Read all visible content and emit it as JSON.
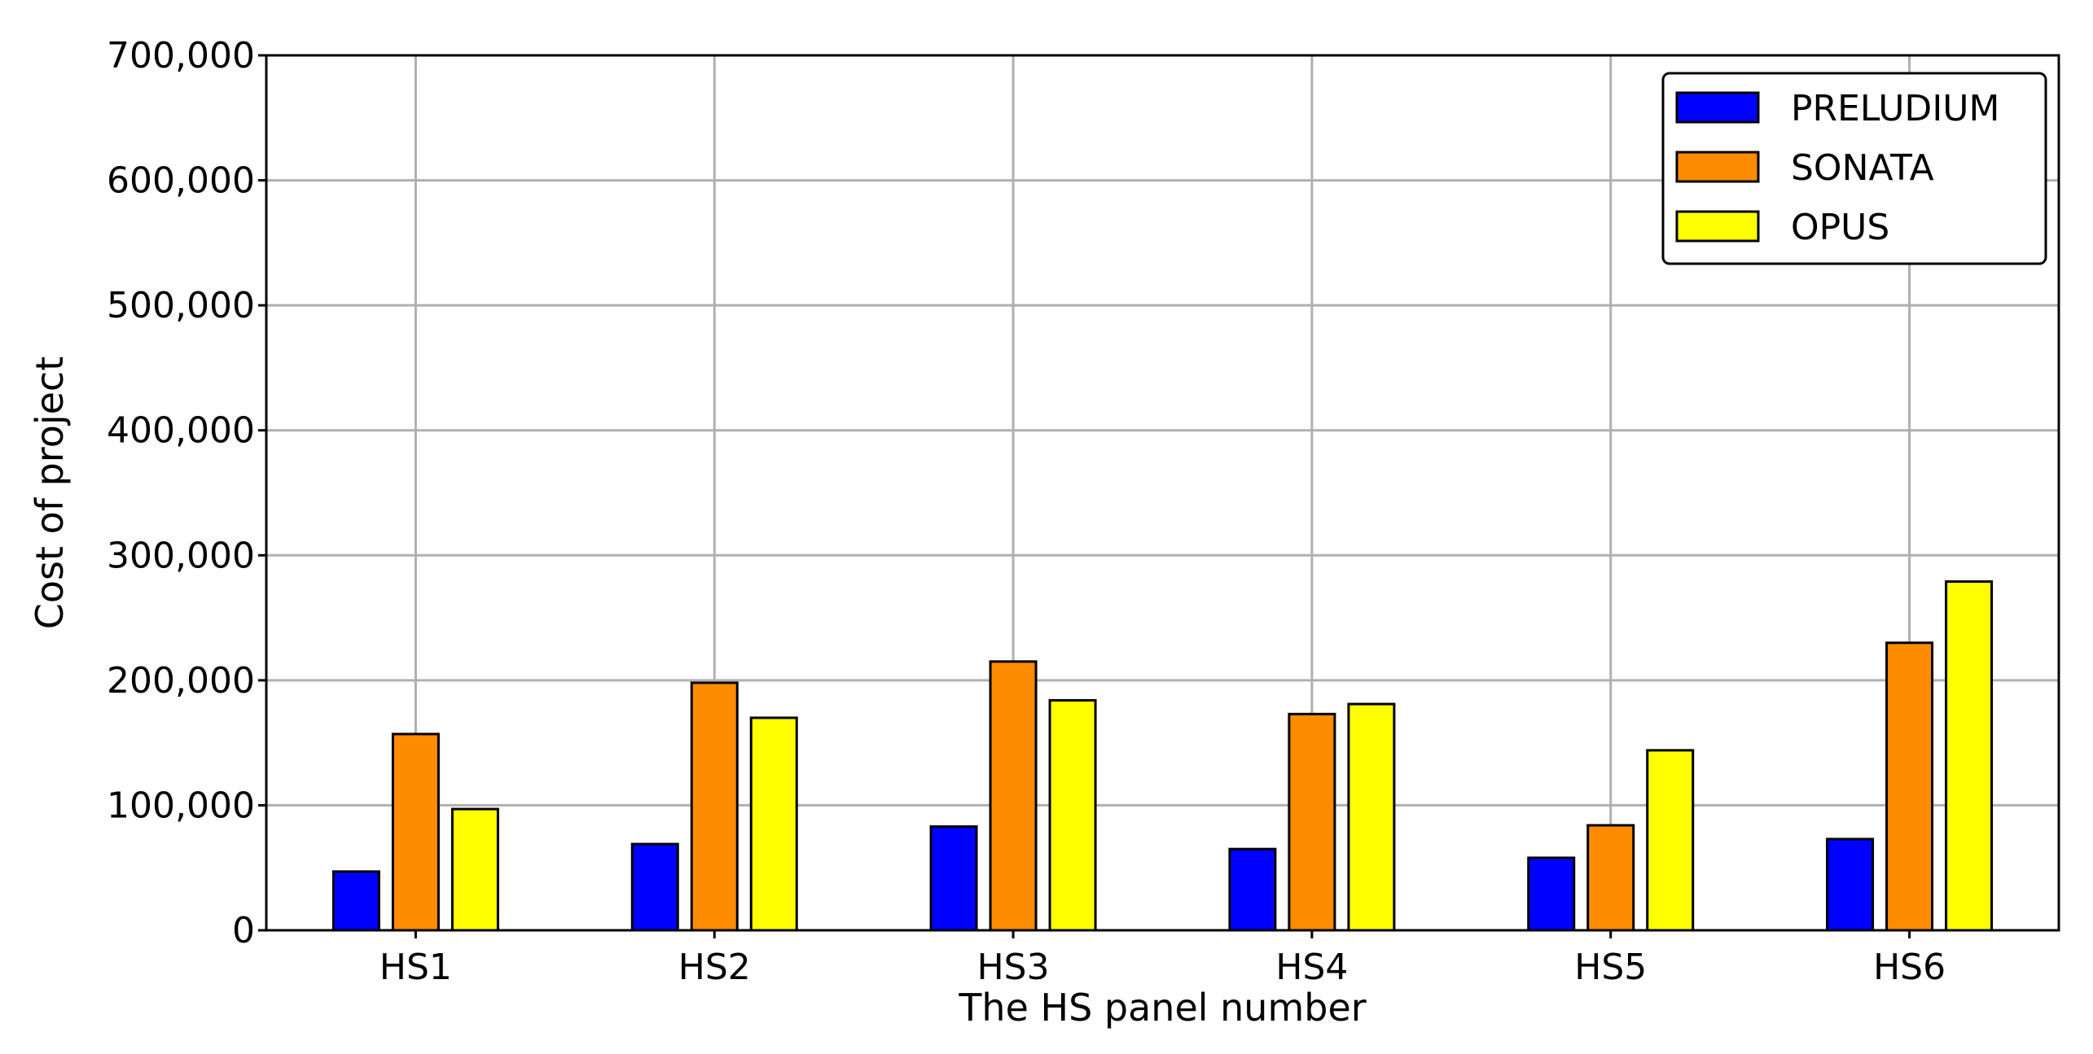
{
  "chart_data": {
    "type": "bar",
    "title": "",
    "xlabel": "The HS panel number",
    "ylabel": "Cost of project",
    "categories": [
      "HS1",
      "HS2",
      "HS3",
      "HS4",
      "HS5",
      "HS6"
    ],
    "series": [
      {
        "name": "PRELUDIUM",
        "color": "#0000ff",
        "values": [
          47000,
          69000,
          83000,
          65000,
          58000,
          73000
        ]
      },
      {
        "name": "SONATA",
        "color": "#ff8c00",
        "values": [
          157000,
          198000,
          215000,
          173000,
          84000,
          230000
        ]
      },
      {
        "name": "OPUS",
        "color": "#ffff00",
        "values": [
          97000,
          170000,
          184000,
          181000,
          144000,
          279000
        ]
      }
    ],
    "ylim": [
      0,
      700000
    ],
    "yticks": [
      0,
      100000,
      200000,
      300000,
      400000,
      500000,
      600000,
      700000
    ],
    "ytick_labels": [
      "0",
      "100,000",
      "200,000",
      "300,000",
      "400,000",
      "500,000",
      "600,000",
      "700,000"
    ],
    "grid": true,
    "legend_position": "top-right"
  }
}
